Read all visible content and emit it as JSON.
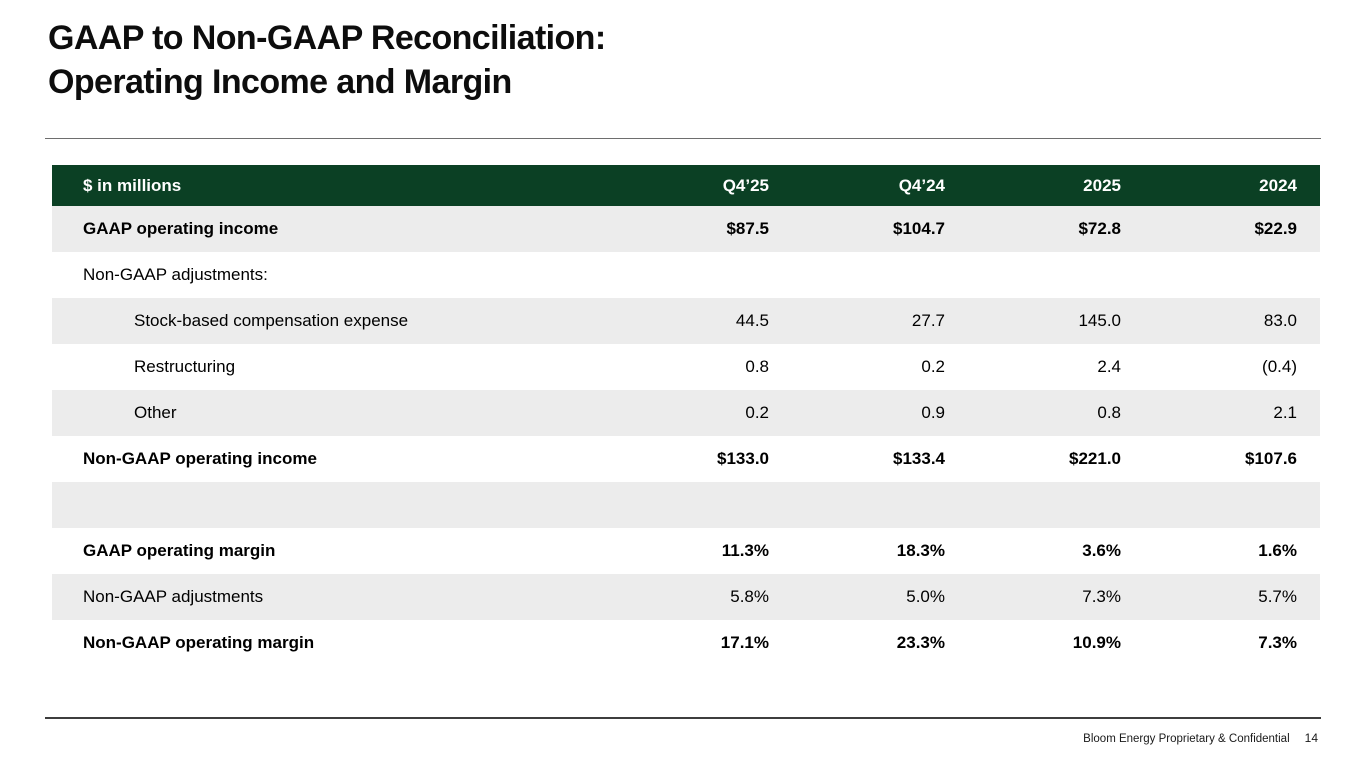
{
  "slide": {
    "title_line1": "GAAP to Non-GAAP Reconciliation:",
    "title_line2": "Operating Income and Margin",
    "footer": "Bloom Energy Proprietary & Confidential",
    "page_number": "14"
  },
  "colors": {
    "header_green": "#0b4024",
    "stripe_gray": "#ececec",
    "header_text": "#ffffff",
    "body_text": "#000000"
  },
  "chart_data": {
    "type": "table",
    "unit_label": "$ in millions",
    "columns": [
      "Q4’25",
      "Q4’24",
      "2025",
      "2024"
    ],
    "rows": [
      {
        "label": "GAAP operating income",
        "values": [
          "$87.5",
          "$104.7",
          "$72.8",
          "$22.9"
        ],
        "bold": true,
        "indent": 0,
        "spacer": false
      },
      {
        "label": "Non-GAAP adjustments:",
        "values": [
          "",
          "",
          "",
          ""
        ],
        "bold": false,
        "indent": 0,
        "spacer": false
      },
      {
        "label": "Stock-based compensation expense",
        "values": [
          "44.5",
          "27.7",
          "145.0",
          "83.0"
        ],
        "bold": false,
        "indent": 1,
        "spacer": false
      },
      {
        "label": "Restructuring",
        "values": [
          "0.8",
          "0.2",
          "2.4",
          "(0.4)"
        ],
        "bold": false,
        "indent": 1,
        "spacer": false
      },
      {
        "label": "Other",
        "values": [
          "0.2",
          "0.9",
          "0.8",
          "2.1"
        ],
        "bold": false,
        "indent": 1,
        "spacer": false
      },
      {
        "label": "Non-GAAP operating income",
        "values": [
          "$133.0",
          "$133.4",
          "$221.0",
          "$107.6"
        ],
        "bold": true,
        "indent": 0,
        "spacer": false
      },
      {
        "label": "",
        "values": [
          "",
          "",
          "",
          ""
        ],
        "bold": false,
        "indent": 0,
        "spacer": true
      },
      {
        "label": "GAAP operating margin",
        "values": [
          "11.3%",
          "18.3%",
          "3.6%",
          "1.6%"
        ],
        "bold": true,
        "indent": 0,
        "spacer": false
      },
      {
        "label": "Non-GAAP adjustments",
        "values": [
          "5.8%",
          "5.0%",
          "7.3%",
          "5.7%"
        ],
        "bold": false,
        "indent": 0,
        "spacer": false
      },
      {
        "label": "Non-GAAP operating margin",
        "values": [
          "17.1%",
          "23.3%",
          "10.9%",
          "7.3%"
        ],
        "bold": true,
        "indent": 0,
        "spacer": false
      }
    ]
  }
}
